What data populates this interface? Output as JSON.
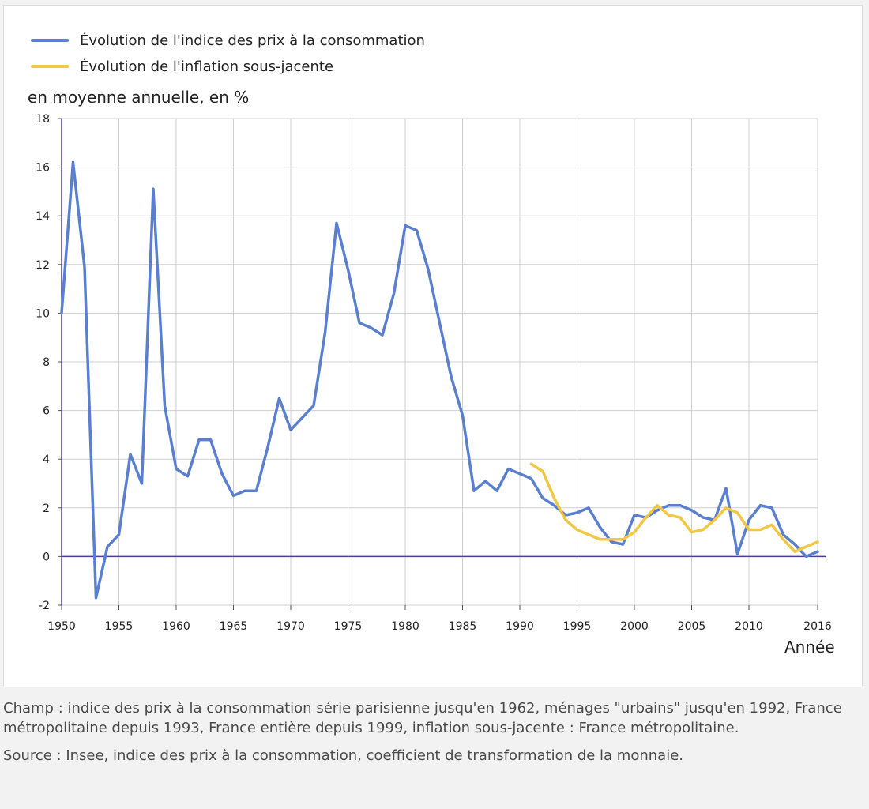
{
  "legend": [
    {
      "label": "Évolution de l'indice des prix à la consommation",
      "color": "#5a7fcf"
    },
    {
      "label": "Évolution de l'inflation sous-jacente",
      "color": "#f2c744"
    }
  ],
  "notes": {
    "champ": "Champ : indice des prix à la consommation série parisienne jusqu'en 1962, ménages \"urbains\" jusqu'en 1992, France métropolitaine depuis 1993, France entière depuis 1999, inflation sous-jacente : France métropolitaine.",
    "source": "Source : Insee, indice des prix à la consommation, coefficient de transformation de la monnaie."
  },
  "chart_data": {
    "type": "line",
    "title": "",
    "xlabel": "Année",
    "ylabel": "en moyenne annuelle, en %",
    "xlim": [
      1950,
      2016
    ],
    "ylim": [
      -2,
      18
    ],
    "x_ticks": [
      1950,
      1955,
      1960,
      1965,
      1970,
      1975,
      1980,
      1985,
      1990,
      1995,
      2000,
      2005,
      2010,
      2016
    ],
    "y_ticks": [
      -2,
      0,
      2,
      4,
      6,
      8,
      10,
      12,
      14,
      16,
      18
    ],
    "grid": true,
    "legend_position": "top-left",
    "series": [
      {
        "name": "Évolution de l'indice des prix à la consommation",
        "color": "#5a7fcf",
        "x": [
          1950,
          1951,
          1952,
          1953,
          1954,
          1955,
          1956,
          1957,
          1958,
          1959,
          1960,
          1961,
          1962,
          1963,
          1964,
          1965,
          1966,
          1967,
          1968,
          1969,
          1970,
          1971,
          1972,
          1973,
          1974,
          1975,
          1976,
          1977,
          1978,
          1979,
          1980,
          1981,
          1982,
          1983,
          1984,
          1985,
          1986,
          1987,
          1988,
          1989,
          1990,
          1991,
          1992,
          1993,
          1994,
          1995,
          1996,
          1997,
          1998,
          1999,
          2000,
          2001,
          2002,
          2003,
          2004,
          2005,
          2006,
          2007,
          2008,
          2009,
          2010,
          2011,
          2012,
          2013,
          2014,
          2015,
          2016
        ],
        "values": [
          10.0,
          16.2,
          11.9,
          -1.7,
          0.4,
          0.9,
          4.2,
          3.0,
          15.1,
          6.2,
          3.6,
          3.3,
          4.8,
          4.8,
          3.4,
          2.5,
          2.7,
          2.7,
          4.5,
          6.5,
          5.2,
          5.7,
          6.2,
          9.2,
          13.7,
          11.8,
          9.6,
          9.4,
          9.1,
          10.8,
          13.6,
          13.4,
          11.8,
          9.6,
          7.4,
          5.8,
          2.7,
          3.1,
          2.7,
          3.6,
          3.4,
          3.2,
          2.4,
          2.1,
          1.7,
          1.8,
          2.0,
          1.2,
          0.6,
          0.5,
          1.7,
          1.6,
          1.9,
          2.1,
          2.1,
          1.9,
          1.6,
          1.5,
          2.8,
          0.1,
          1.5,
          2.1,
          2.0,
          0.9,
          0.5,
          0.0,
          0.2
        ]
      },
      {
        "name": "Évolution de l'inflation sous-jacente",
        "color": "#f2c744",
        "x": [
          1991,
          1992,
          1993,
          1994,
          1995,
          1996,
          1997,
          1998,
          1999,
          2000,
          2001,
          2002,
          2003,
          2004,
          2005,
          2006,
          2007,
          2008,
          2009,
          2010,
          2011,
          2012,
          2013,
          2014,
          2015,
          2016
        ],
        "values": [
          3.8,
          3.5,
          2.4,
          1.5,
          1.1,
          0.9,
          0.7,
          0.7,
          0.7,
          1.0,
          1.6,
          2.1,
          1.7,
          1.6,
          1.0,
          1.1,
          1.5,
          2.0,
          1.8,
          1.1,
          1.1,
          1.3,
          0.7,
          0.2,
          0.4,
          0.6
        ]
      }
    ]
  }
}
